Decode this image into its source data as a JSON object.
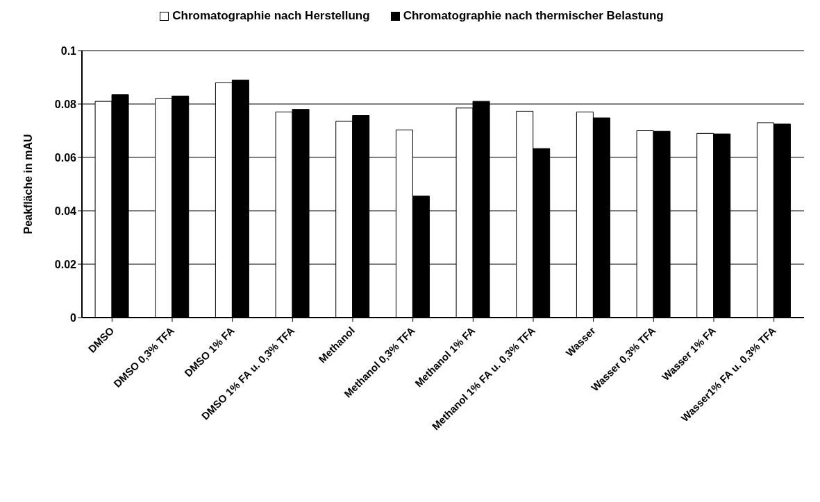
{
  "chart_data": {
    "type": "bar",
    "ylabel": "Peakfläche in mAU",
    "categories": [
      "DMSO",
      "DMSO 0,3% TFA",
      "DMSO 1% FA",
      "DMSO 1% FA u. 0,3% TFA",
      "Methanol",
      "Methanol 0,3% TFA",
      "Methanol 1% FA",
      "Methanol 1% FA u. 0,3% TFA",
      "Wasser",
      "Wasser 0,3% TFA",
      "Wasser 1% FA",
      "Wasser1% FA u. 0,3% TFA"
    ],
    "series": [
      {
        "name": "Chromatographie nach Herstellung",
        "color": "#ffffff",
        "values": [
          0.081,
          0.082,
          0.088,
          0.077,
          0.0735,
          0.0703,
          0.0785,
          0.0773,
          0.077,
          0.07,
          0.069,
          0.073
        ]
      },
      {
        "name": "Chromatographie nach thermischer Belastung",
        "color": "#000000",
        "values": [
          0.0835,
          0.083,
          0.089,
          0.078,
          0.0757,
          0.0455,
          0.081,
          0.0633,
          0.0748,
          0.0698,
          0.0688,
          0.0725
        ]
      }
    ],
    "ylim": [
      0,
      0.1
    ],
    "yticks": [
      0,
      0.02,
      0.04,
      0.06,
      0.08,
      0.1
    ],
    "grid": "y",
    "legend": "top"
  }
}
